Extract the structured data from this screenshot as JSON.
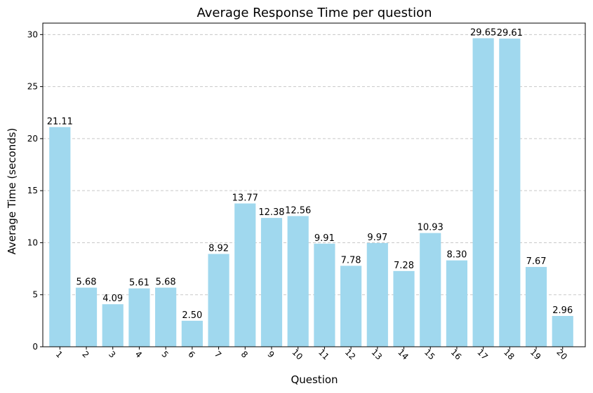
{
  "chart_data": {
    "type": "bar",
    "title": "Average Response Time per question",
    "xlabel": "Question",
    "ylabel": "Average Time (seconds)",
    "categories": [
      "1",
      "2",
      "3",
      "4",
      "5",
      "6",
      "7",
      "8",
      "9",
      "10",
      "11",
      "12",
      "13",
      "14",
      "15",
      "16",
      "17",
      "18",
      "19",
      "20"
    ],
    "values": [
      21.11,
      5.68,
      4.09,
      5.61,
      5.68,
      2.5,
      8.92,
      13.77,
      12.38,
      12.56,
      9.91,
      7.78,
      9.97,
      7.28,
      10.93,
      8.3,
      29.65,
      29.61,
      7.67,
      2.96
    ],
    "value_labels": [
      "21.11",
      "5.68",
      "4.09",
      "5.61",
      "5.68",
      "2.50",
      "8.92",
      "13.77",
      "12.38",
      "12.56",
      "9.91",
      "7.78",
      "9.97",
      "7.28",
      "10.93",
      "8.30",
      "29.65",
      "29.61",
      "7.67",
      "2.96"
    ],
    "ylim": [
      0,
      31.1
    ],
    "yticks": [
      0,
      5,
      10,
      15,
      20,
      25,
      30
    ],
    "ytick_labels": [
      "0",
      "5",
      "10",
      "15",
      "20",
      "25",
      "30"
    ],
    "grid": "y-dashed",
    "bar_color": "#a0d8ee",
    "grid_color": "#c8c8c8"
  }
}
